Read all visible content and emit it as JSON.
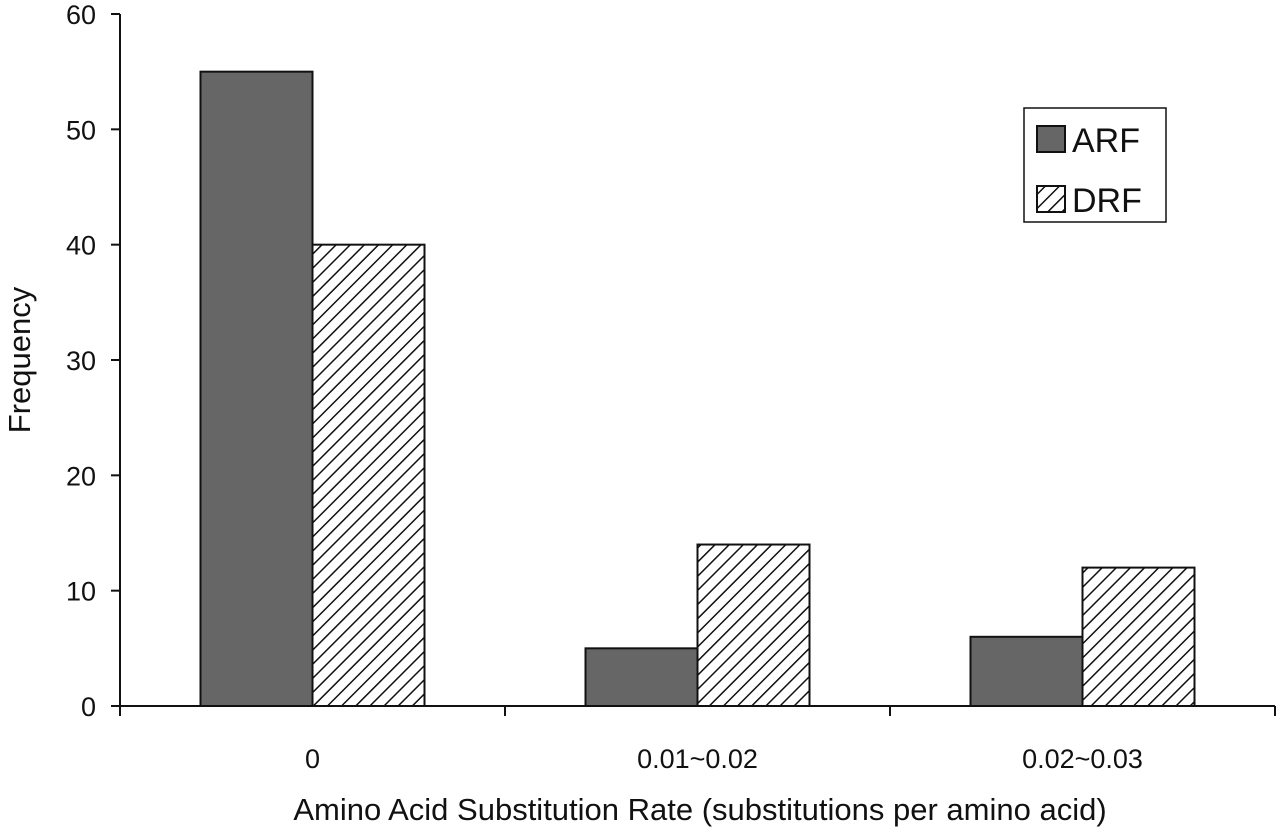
{
  "chart_data": {
    "type": "bar",
    "title": "",
    "xlabel": "Amino Acid Substitution Rate (substitutions per amino acid)",
    "ylabel": "Frequency",
    "categories": [
      "0",
      "0.01~0.02",
      "0.02~0.03"
    ],
    "series": [
      {
        "name": "ARF",
        "values": [
          55,
          5,
          6
        ],
        "fill": "solid-dark",
        "color": "#666666"
      },
      {
        "name": "DRF",
        "values": [
          40,
          14,
          12
        ],
        "fill": "diagonal-hatch",
        "color": "#ffffff"
      }
    ],
    "ylim": [
      0,
      60
    ],
    "yticks": [
      0,
      10,
      20,
      30,
      40,
      50,
      60
    ],
    "grid": false,
    "legend_position": "top-right"
  }
}
